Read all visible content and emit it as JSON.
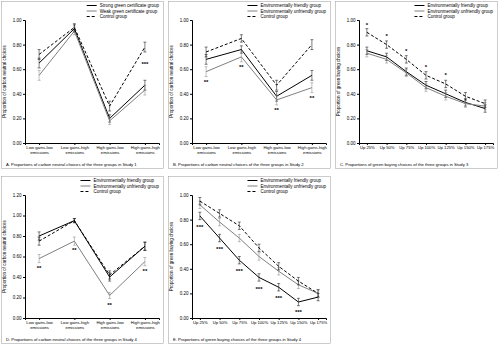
{
  "chart_data": [
    {
      "type": "line",
      "title": "A. Proportions of carbon neutral choices of the three groups in Study 1",
      "y_label": "Proportion of carbon neutral choices",
      "categories": [
        "Low gains-low emissions",
        "Low gains-high emissions",
        "High gains-low emissions",
        "High gains-high emissions"
      ],
      "series": [
        {
          "name": "Strong green certificate group",
          "color": "#000000",
          "line_style": "solid",
          "values": [
            0.65,
            0.93,
            0.2,
            0.47
          ],
          "errors": [
            0.04,
            0.03,
            0.03,
            0.04
          ]
        },
        {
          "name": "Weak green certificate group",
          "color": "#808080",
          "line_style": "solid",
          "values": [
            0.55,
            0.91,
            0.18,
            0.43
          ],
          "errors": [
            0.04,
            0.03,
            0.03,
            0.04
          ]
        },
        {
          "name": "Control group",
          "color": "#000000",
          "line_style": "dashed",
          "values": [
            0.72,
            0.94,
            0.3,
            0.78
          ],
          "errors": [
            0.04,
            0.03,
            0.04,
            0.04
          ]
        }
      ],
      "ylim": [
        0,
        1
      ],
      "yticks": [
        {
          "value": 0,
          "label": "0.00"
        },
        {
          "value": 0.2,
          "label": "0.20"
        },
        {
          "value": 0.4,
          "label": "0.40"
        },
        {
          "value": 0.6,
          "label": "0.60"
        },
        {
          "value": 0.8,
          "label": "0.80"
        },
        {
          "value": 1,
          "label": "1.00"
        }
      ],
      "annotations": [
        {
          "text": "***",
          "x": 3,
          "y": 0.64
        }
      ],
      "legend": "top right"
    },
    {
      "type": "line",
      "title": "B. Proportions of carbon neutral choices of the three groups in Study 2",
      "y_label": "Proportion of carbon neutral choices",
      "categories": [
        "Low gains-low emissions",
        "Low gains-high emissions",
        "High gains-low emissions",
        "High gains-high emissions"
      ],
      "series": [
        {
          "name": "Environmentally friendly group",
          "color": "#000000",
          "line_style": "solid",
          "values": [
            0.68,
            0.76,
            0.38,
            0.55
          ],
          "errors": [
            0.04,
            0.03,
            0.04,
            0.04
          ]
        },
        {
          "name": "Environmentally unfriendly group",
          "color": "#808080",
          "line_style": "solid",
          "values": [
            0.58,
            0.7,
            0.35,
            0.45
          ],
          "errors": [
            0.04,
            0.04,
            0.04,
            0.04
          ]
        },
        {
          "name": "Control group",
          "color": "#000000",
          "line_style": "dashed",
          "values": [
            0.74,
            0.85,
            0.47,
            0.8
          ],
          "errors": [
            0.04,
            0.03,
            0.04,
            0.04
          ]
        }
      ],
      "ylim": [
        0,
        1
      ],
      "yticks": [
        {
          "value": 0,
          "label": "0.00"
        },
        {
          "value": 0.2,
          "label": "0.20"
        },
        {
          "value": 0.4,
          "label": "0.40"
        },
        {
          "value": 0.6,
          "label": "0.60"
        },
        {
          "value": 0.8,
          "label": "0.80"
        },
        {
          "value": 1,
          "label": "1.00"
        }
      ],
      "annotations": [
        {
          "text": "**",
          "x": 0,
          "y": 0.5
        },
        {
          "text": "**",
          "x": 1,
          "y": 0.62
        },
        {
          "text": "**",
          "x": 2,
          "y": 0.27
        },
        {
          "text": "**",
          "x": 3,
          "y": 0.37
        }
      ],
      "legend": "top right"
    },
    {
      "type": "line",
      "title": "C. Proportions of green buying choices of the three groups in Study 3",
      "y_label": "Proportion of green buying choices",
      "categories": [
        "Up 25%",
        "Up 50%",
        "Up 75%",
        "Up 100%",
        "Up 125%",
        "Up 150%",
        "Up 175%"
      ],
      "series": [
        {
          "name": "Environmentally friendly group",
          "color": "#000000",
          "line_style": "solid",
          "values": [
            0.75,
            0.7,
            0.58,
            0.47,
            0.4,
            0.33,
            0.28
          ],
          "errors": [
            0.03,
            0.03,
            0.03,
            0.03,
            0.03,
            0.03,
            0.03
          ]
        },
        {
          "name": "Environmentally unfriendly group",
          "color": "#808080",
          "line_style": "solid",
          "values": [
            0.73,
            0.68,
            0.57,
            0.45,
            0.38,
            0.32,
            0.3
          ],
          "errors": [
            0.03,
            0.03,
            0.03,
            0.03,
            0.03,
            0.03,
            0.03
          ]
        },
        {
          "name": "Control group",
          "color": "#000000",
          "line_style": "dashed",
          "values": [
            0.9,
            0.8,
            0.68,
            0.55,
            0.48,
            0.38,
            0.32
          ],
          "errors": [
            0.03,
            0.03,
            0.03,
            0.03,
            0.03,
            0.03,
            0.03
          ]
        }
      ],
      "ylim": [
        0,
        1
      ],
      "yticks": [
        {
          "value": 0,
          "label": "0.00"
        },
        {
          "value": 0.2,
          "label": "0.20"
        },
        {
          "value": 0.4,
          "label": "0.40"
        },
        {
          "value": 0.6,
          "label": "0.60"
        },
        {
          "value": 0.8,
          "label": "0.80"
        },
        {
          "value": 1,
          "label": "1.00"
        }
      ],
      "annotations": [
        {
          "text": "*",
          "x": 0,
          "y": 0.96
        },
        {
          "text": "*",
          "x": 1,
          "y": 0.87
        },
        {
          "text": "*",
          "x": 2,
          "y": 0.75
        },
        {
          "text": "*",
          "x": 3,
          "y": 0.62
        },
        {
          "text": "*",
          "x": 4,
          "y": 0.55
        }
      ],
      "legend": "top right"
    },
    {
      "type": "line",
      "title": "D. Proportions of carbon neutral choices of the three groups in Study 4",
      "y_label": "Proportion of carbon neutral choices",
      "categories": [
        "Low gains-low emissions",
        "Low gains-high emissions",
        "High gains-low emissions",
        "High gains-high emissions"
      ],
      "series": [
        {
          "name": "Environmentally friendly group",
          "color": "#000000",
          "line_style": "solid",
          "values": [
            0.8,
            0.95,
            0.4,
            0.7
          ],
          "errors": [
            0.04,
            0.02,
            0.04,
            0.04
          ]
        },
        {
          "name": "Environmentally unfriendly group",
          "color": "#808080",
          "line_style": "solid",
          "values": [
            0.58,
            0.75,
            0.22,
            0.55
          ],
          "errors": [
            0.04,
            0.04,
            0.03,
            0.04
          ]
        },
        {
          "name": "Control group",
          "color": "#000000",
          "line_style": "dashed",
          "values": [
            0.75,
            0.95,
            0.42,
            0.7
          ],
          "errors": [
            0.04,
            0.02,
            0.04,
            0.04
          ]
        }
      ],
      "ylim": [
        0,
        1.2
      ],
      "yticks": [
        {
          "value": 0,
          "label": "0.00"
        },
        {
          "value": 0.2,
          "label": "0.20"
        },
        {
          "value": 0.4,
          "label": "0.40"
        },
        {
          "value": 0.6,
          "label": "0.60"
        },
        {
          "value": 0.8,
          "label": "0.80"
        },
        {
          "value": 1,
          "label": "1.00"
        },
        {
          "value": 1.2,
          "label": "1.20"
        }
      ],
      "annotations": [
        {
          "text": "**",
          "x": 0,
          "y": 0.49
        },
        {
          "text": "**",
          "x": 1,
          "y": 0.66
        },
        {
          "text": "**",
          "x": 2,
          "y": 0.13
        },
        {
          "text": "**",
          "x": 3,
          "y": 0.46
        }
      ],
      "legend": "top right"
    },
    {
      "type": "line",
      "title": "E. Proportions of green buying choices of the three groups in Study 4",
      "y_label": "Proportion of green buying choices",
      "categories": [
        "Up 25%",
        "Up 50%",
        "Up 75%",
        "Up 100%",
        "Up 125%",
        "Up 150%",
        "Up 175%"
      ],
      "series": [
        {
          "name": "Environmentally friendly group",
          "color": "#000000",
          "line_style": "solid",
          "values": [
            0.83,
            0.65,
            0.47,
            0.33,
            0.25,
            0.13,
            0.17
          ],
          "errors": [
            0.03,
            0.03,
            0.03,
            0.03,
            0.03,
            0.03,
            0.03
          ]
        },
        {
          "name": "Environmentally unfriendly group",
          "color": "#808080",
          "line_style": "solid",
          "values": [
            0.92,
            0.78,
            0.65,
            0.5,
            0.38,
            0.27,
            0.2
          ],
          "errors": [
            0.03,
            0.03,
            0.03,
            0.03,
            0.03,
            0.03,
            0.03
          ]
        },
        {
          "name": "Control group",
          "color": "#000000",
          "line_style": "dashed",
          "values": [
            0.95,
            0.85,
            0.75,
            0.57,
            0.42,
            0.3,
            0.2
          ],
          "errors": [
            0.03,
            0.03,
            0.03,
            0.03,
            0.03,
            0.03,
            0.03
          ]
        }
      ],
      "ylim": [
        0,
        1
      ],
      "yticks": [
        {
          "value": 0,
          "label": "0.00"
        },
        {
          "value": 0.2,
          "label": "0.20"
        },
        {
          "value": 0.4,
          "label": "0.40"
        },
        {
          "value": 0.6,
          "label": "0.60"
        },
        {
          "value": 0.8,
          "label": "0.80"
        },
        {
          "value": 1,
          "label": "1.00"
        }
      ],
      "annotations": [
        {
          "text": "***",
          "x": 0,
          "y": 0.74
        },
        {
          "text": "***",
          "x": 1,
          "y": 0.56
        },
        {
          "text": "***",
          "x": 2,
          "y": 0.38
        },
        {
          "text": "***",
          "x": 3,
          "y": 0.24
        },
        {
          "text": "***",
          "x": 4,
          "y": 0.16
        },
        {
          "text": "***",
          "x": 5,
          "y": 0.05
        }
      ],
      "legend": "top right"
    }
  ]
}
